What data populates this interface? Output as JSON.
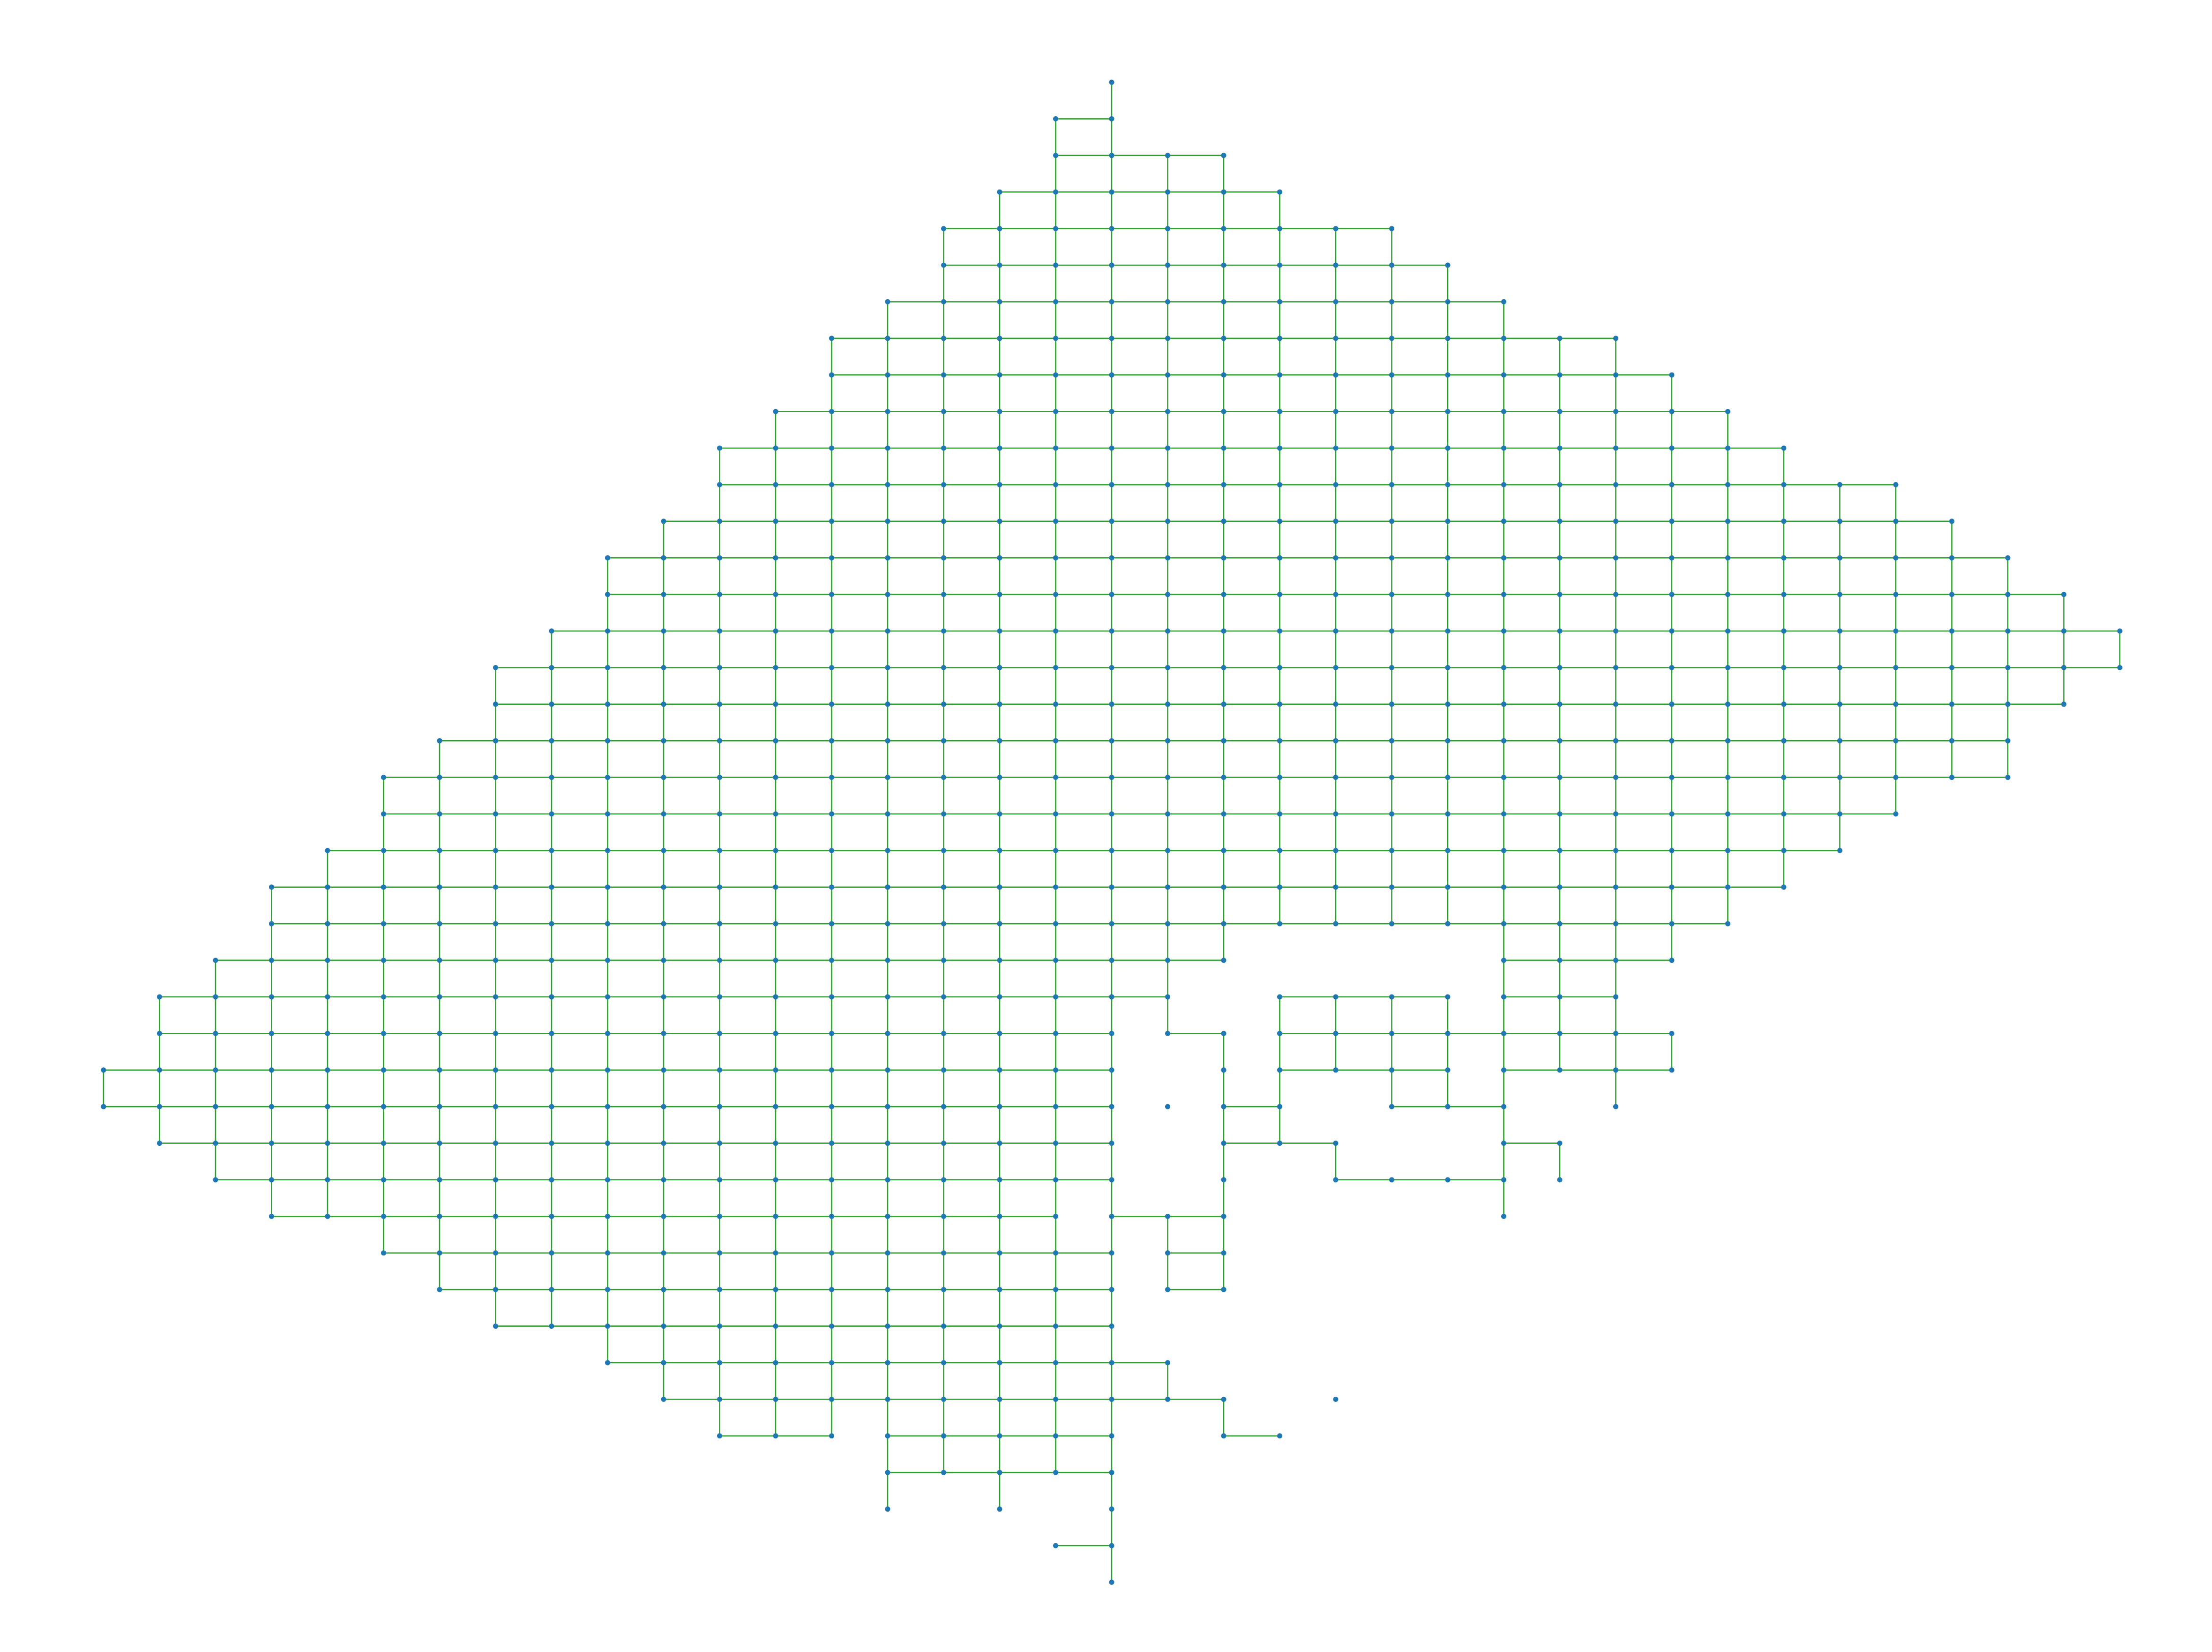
{
  "diagram": {
    "type": "grid-graph",
    "colors": {
      "background": "#ffffff",
      "edge": "#2ca02c",
      "node": "#1f77b4"
    },
    "grid": {
      "col_min": -24,
      "col_max": 24,
      "row_min": 0,
      "row_max": 41
    },
    "rows": [
      {
        "r": 0,
        "spans": [
          [
            0,
            0
          ]
        ]
      },
      {
        "r": 1,
        "spans": [
          [
            -1,
            0
          ]
        ]
      },
      {
        "r": 2,
        "spans": [
          [
            -1,
            2
          ]
        ]
      },
      {
        "r": 3,
        "spans": [
          [
            -2,
            3
          ]
        ]
      },
      {
        "r": 4,
        "spans": [
          [
            -3,
            5
          ]
        ]
      },
      {
        "r": 5,
        "spans": [
          [
            -3,
            6
          ]
        ]
      },
      {
        "r": 6,
        "spans": [
          [
            -4,
            7
          ]
        ]
      },
      {
        "r": 7,
        "spans": [
          [
            -5,
            9
          ]
        ]
      },
      {
        "r": 8,
        "spans": [
          [
            -5,
            10
          ]
        ]
      },
      {
        "r": 9,
        "spans": [
          [
            -6,
            11
          ]
        ]
      },
      {
        "r": 10,
        "spans": [
          [
            -7,
            12
          ]
        ]
      },
      {
        "r": 11,
        "spans": [
          [
            -7,
            14
          ]
        ]
      },
      {
        "r": 12,
        "spans": [
          [
            -8,
            15
          ]
        ]
      },
      {
        "r": 13,
        "spans": [
          [
            -9,
            16
          ]
        ]
      },
      {
        "r": 14,
        "spans": [
          [
            -9,
            17
          ]
        ]
      },
      {
        "r": 15,
        "spans": [
          [
            -10,
            18
          ]
        ]
      },
      {
        "r": 16,
        "spans": [
          [
            -11,
            18
          ]
        ]
      },
      {
        "r": 17,
        "spans": [
          [
            -11,
            17
          ]
        ]
      },
      {
        "r": 18,
        "spans": [
          [
            -12,
            16
          ]
        ]
      },
      {
        "r": 19,
        "spans": [
          [
            -13,
            16
          ]
        ]
      },
      {
        "r": 20,
        "spans": [
          [
            -13,
            14
          ]
        ]
      },
      {
        "r": 21,
        "spans": [
          [
            -14,
            13
          ]
        ]
      },
      {
        "r": 22,
        "spans": [
          [
            -15,
            12
          ]
        ]
      },
      {
        "r": 23,
        "spans": [
          [
            -15,
            11
          ]
        ]
      },
      {
        "r": 24,
        "spans": [
          [
            -16,
            2
          ],
          [
            7,
            10
          ]
        ]
      },
      {
        "r": 25,
        "spans": [
          [
            -17,
            1
          ],
          [
            3,
            6
          ],
          [
            7,
            9
          ]
        ]
      },
      {
        "r": 26,
        "spans": [
          [
            -17,
            0
          ],
          [
            1,
            2
          ],
          [
            3,
            10
          ]
        ]
      },
      {
        "r": 27,
        "spans": [
          [
            -18,
            0
          ],
          [
            2,
            2
          ],
          [
            3,
            6
          ],
          [
            6,
            6
          ],
          [
            7,
            10
          ]
        ]
      },
      {
        "r": 28,
        "spans": [
          [
            -18,
            0
          ],
          [
            1,
            1
          ],
          [
            2,
            3
          ],
          [
            5,
            7
          ],
          [
            9,
            9
          ]
        ]
      },
      {
        "r": 29,
        "spans": [
          [
            -17,
            0
          ],
          [
            2,
            4
          ],
          [
            7,
            8
          ]
        ]
      },
      {
        "r": 30,
        "spans": [
          [
            -16,
            0
          ],
          [
            2,
            2
          ],
          [
            4,
            7
          ],
          [
            8,
            8
          ]
        ]
      },
      {
        "r": 31,
        "spans": [
          [
            -15,
            -1
          ],
          [
            0,
            2
          ],
          [
            7,
            7
          ]
        ]
      },
      {
        "r": 32,
        "spans": [
          [
            -13,
            0
          ],
          [
            1,
            2
          ]
        ]
      },
      {
        "r": 33,
        "spans": [
          [
            -12,
            0
          ],
          [
            1,
            2
          ]
        ]
      },
      {
        "r": 34,
        "spans": [
          [
            -11,
            0
          ]
        ]
      },
      {
        "r": 35,
        "spans": [
          [
            -9,
            1
          ]
        ]
      },
      {
        "r": 36,
        "spans": [
          [
            -8,
            2
          ],
          [
            4,
            4
          ]
        ]
      },
      {
        "r": 37,
        "spans": [
          [
            -7,
            -5
          ],
          [
            -4,
            0
          ],
          [
            2,
            3
          ]
        ]
      },
      {
        "r": 38,
        "spans": [
          [
            -4,
            0
          ]
        ]
      },
      {
        "r": 39,
        "spans": [
          [
            -4,
            -4
          ],
          [
            -2,
            -2
          ],
          [
            0,
            0
          ]
        ]
      },
      {
        "r": 40,
        "spans": [
          [
            -1,
            0
          ]
        ]
      },
      {
        "r": 41,
        "spans": [
          [
            0,
            0
          ]
        ]
      }
    ]
  }
}
